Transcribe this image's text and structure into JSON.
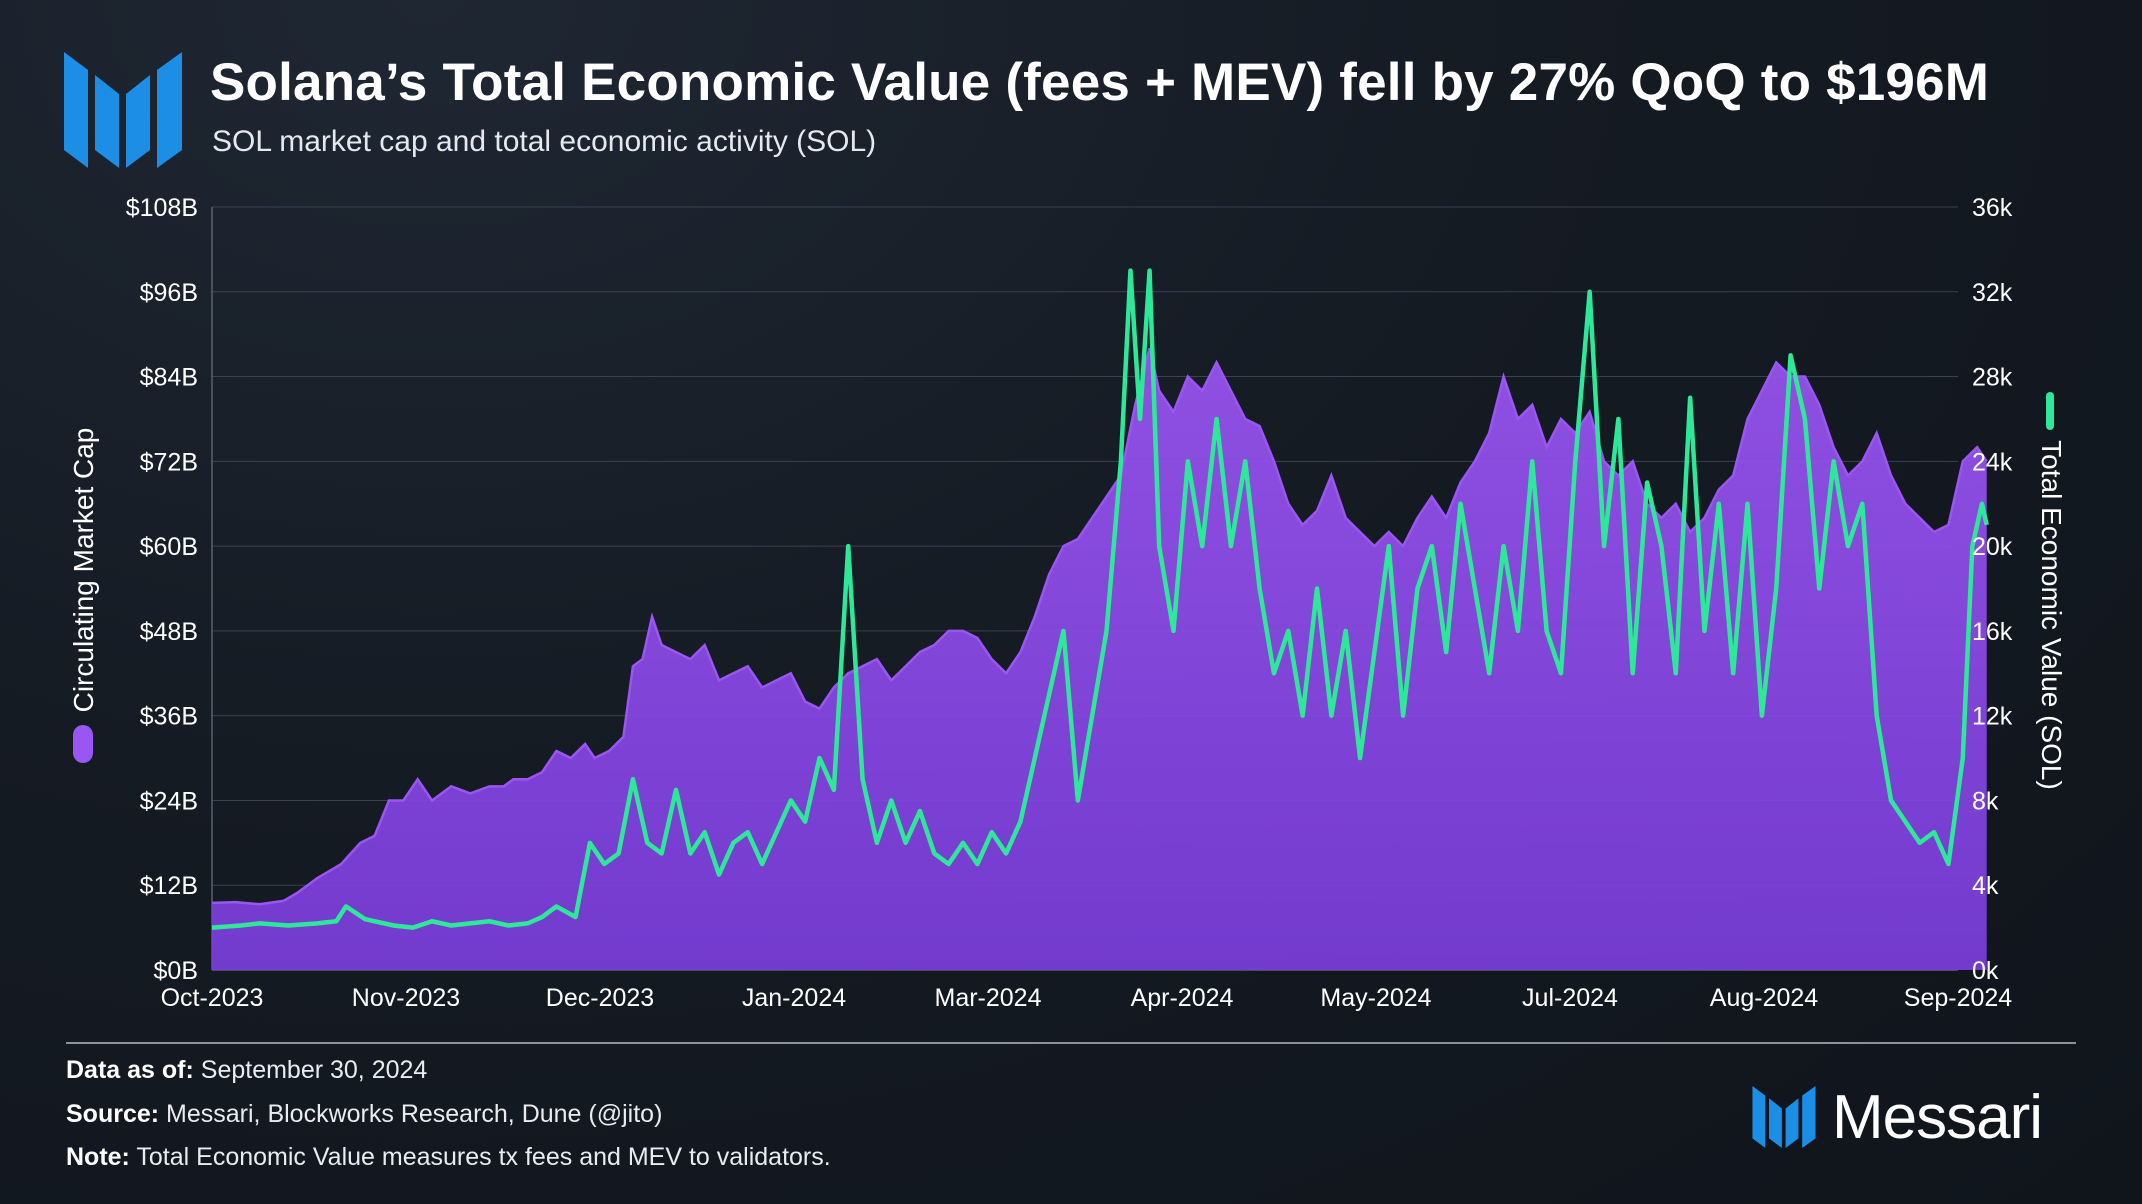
{
  "header": {
    "title": "Solana’s Total Economic Value (fees + MEV) fell by 27% QoQ to $196M",
    "subtitle": "SOL market cap and total economic activity (SOL)"
  },
  "footer": {
    "data_as_of_label": "Data as of:",
    "data_as_of_value": "September 30, 2024",
    "source_label": "Source:",
    "source_value": "Messari, Blockworks Research, Dune (@jito)",
    "note_label": "Note:",
    "note_value": "Total Economic Value measures tx fees and MEV to validators.",
    "brand_name": "Messari"
  },
  "colors": {
    "market_cap_fill": "#7b3ddd",
    "market_cap_line": "#9a55f2",
    "economic_value_line": "#2ee89a",
    "brand_blue": "#1d8ee6",
    "grid": "#3a4150"
  },
  "chart_data": {
    "type": "area+line",
    "title": "Solana’s Total Economic Value (fees + MEV) fell by 27% QoQ to $196M",
    "subtitle": "SOL market cap and total economic activity (SOL)",
    "x_tick_labels": [
      "Oct-2023",
      "Nov-2023",
      "Dec-2023",
      "Jan-2024",
      "Mar-2024",
      "Apr-2024",
      "May-2024",
      "Jul-2024",
      "Aug-2024",
      "Sep-2024"
    ],
    "x_range_days": [
      0,
      365
    ],
    "left_axis": {
      "label": "Circulating Market Cap",
      "range": [
        0,
        108
      ],
      "ticks": [
        0,
        12,
        24,
        36,
        48,
        60,
        72,
        84,
        96,
        108
      ],
      "tick_labels": [
        "$0B",
        "$12B",
        "$24B",
        "$36B",
        "$48B",
        "$60B",
        "$72B",
        "$84B",
        "$96B",
        "$108B"
      ]
    },
    "right_axis": {
      "label": "Total Economic Value (SOL)",
      "range": [
        0,
        36000
      ],
      "ticks": [
        0,
        4000,
        8000,
        12000,
        16000,
        20000,
        24000,
        28000,
        32000,
        36000
      ],
      "tick_labels": [
        "0k",
        "4k",
        "8k",
        "12k",
        "16k",
        "20k",
        "24k",
        "28k",
        "32k",
        "36k"
      ]
    },
    "series": [
      {
        "name": "Circulating Market Cap",
        "axis": "left",
        "style": "area",
        "unit": "USD billions",
        "points": [
          [
            0,
            9.5
          ],
          [
            5,
            9.6
          ],
          [
            10,
            9.3
          ],
          [
            15,
            9.8
          ],
          [
            18,
            11
          ],
          [
            22,
            13
          ],
          [
            27,
            15
          ],
          [
            31,
            18
          ],
          [
            34,
            19
          ],
          [
            37,
            24
          ],
          [
            40,
            24
          ],
          [
            43,
            27
          ],
          [
            46,
            24
          ],
          [
            50,
            26
          ],
          [
            54,
            25
          ],
          [
            58,
            26
          ],
          [
            61,
            26
          ],
          [
            63,
            27
          ],
          [
            66,
            27
          ],
          [
            69,
            28
          ],
          [
            72,
            31
          ],
          [
            75,
            30
          ],
          [
            78,
            32
          ],
          [
            80,
            30
          ],
          [
            83,
            31
          ],
          [
            86,
            33
          ],
          [
            88,
            43
          ],
          [
            90,
            44
          ],
          [
            92,
            50
          ],
          [
            94,
            46
          ],
          [
            97,
            45
          ],
          [
            100,
            44
          ],
          [
            103,
            46
          ],
          [
            106,
            41
          ],
          [
            109,
            42
          ],
          [
            112,
            43
          ],
          [
            115,
            40
          ],
          [
            118,
            41
          ],
          [
            121,
            42
          ],
          [
            124,
            38
          ],
          [
            127,
            37
          ],
          [
            130,
            40
          ],
          [
            133,
            42
          ],
          [
            136,
            43
          ],
          [
            139,
            44
          ],
          [
            142,
            41
          ],
          [
            145,
            43
          ],
          [
            148,
            45
          ],
          [
            151,
            46
          ],
          [
            154,
            48
          ],
          [
            157,
            48
          ],
          [
            160,
            47
          ],
          [
            163,
            44
          ],
          [
            166,
            42
          ],
          [
            169,
            45
          ],
          [
            172,
            50
          ],
          [
            175,
            56
          ],
          [
            178,
            60
          ],
          [
            181,
            61
          ],
          [
            184,
            64
          ],
          [
            187,
            67
          ],
          [
            190,
            70
          ],
          [
            193,
            80
          ],
          [
            196,
            88
          ],
          [
            198,
            82
          ],
          [
            201,
            79
          ],
          [
            204,
            84
          ],
          [
            207,
            82
          ],
          [
            210,
            86
          ],
          [
            213,
            82
          ],
          [
            216,
            78
          ],
          [
            219,
            77
          ],
          [
            222,
            72
          ],
          [
            225,
            66
          ],
          [
            228,
            63
          ],
          [
            231,
            65
          ],
          [
            234,
            70
          ],
          [
            237,
            64
          ],
          [
            240,
            62
          ],
          [
            243,
            60
          ],
          [
            246,
            62
          ],
          [
            249,
            60
          ],
          [
            252,
            64
          ],
          [
            255,
            67
          ],
          [
            258,
            64
          ],
          [
            261,
            69
          ],
          [
            264,
            72
          ],
          [
            267,
            76
          ],
          [
            270,
            84
          ],
          [
            273,
            78
          ],
          [
            276,
            80
          ],
          [
            279,
            74
          ],
          [
            282,
            78
          ],
          [
            285,
            76
          ],
          [
            288,
            79
          ],
          [
            291,
            72
          ],
          [
            294,
            70
          ],
          [
            297,
            72
          ],
          [
            300,
            66
          ],
          [
            303,
            64
          ],
          [
            306,
            66
          ],
          [
            309,
            62
          ],
          [
            312,
            64
          ],
          [
            315,
            68
          ],
          [
            318,
            70
          ],
          [
            321,
            78
          ],
          [
            324,
            82
          ],
          [
            327,
            86
          ],
          [
            330,
            84
          ],
          [
            333,
            84
          ],
          [
            336,
            80
          ],
          [
            339,
            74
          ],
          [
            342,
            70
          ],
          [
            345,
            72
          ],
          [
            348,
            76
          ],
          [
            351,
            70
          ],
          [
            354,
            66
          ],
          [
            357,
            64
          ],
          [
            360,
            62
          ],
          [
            363,
            63
          ],
          [
            366,
            72
          ],
          [
            369,
            74
          ],
          [
            371,
            72
          ]
        ]
      },
      {
        "name": "Total Economic Value (SOL)",
        "axis": "right",
        "style": "line",
        "unit": "SOL",
        "points": [
          [
            0,
            2000
          ],
          [
            6,
            2100
          ],
          [
            10,
            2200
          ],
          [
            16,
            2100
          ],
          [
            22,
            2200
          ],
          [
            26,
            2300
          ],
          [
            28,
            3000
          ],
          [
            32,
            2400
          ],
          [
            38,
            2100
          ],
          [
            42,
            2000
          ],
          [
            46,
            2300
          ],
          [
            50,
            2100
          ],
          [
            54,
            2200
          ],
          [
            58,
            2300
          ],
          [
            62,
            2100
          ],
          [
            66,
            2200
          ],
          [
            69,
            2500
          ],
          [
            72,
            3000
          ],
          [
            76,
            2500
          ],
          [
            79,
            6000
          ],
          [
            82,
            5000
          ],
          [
            85,
            5500
          ],
          [
            88,
            9000
          ],
          [
            91,
            6000
          ],
          [
            94,
            5500
          ],
          [
            97,
            8500
          ],
          [
            100,
            5500
          ],
          [
            103,
            6500
          ],
          [
            106,
            4500
          ],
          [
            109,
            6000
          ],
          [
            112,
            6500
          ],
          [
            115,
            5000
          ],
          [
            118,
            6500
          ],
          [
            121,
            8000
          ],
          [
            124,
            7000
          ],
          [
            127,
            10000
          ],
          [
            130,
            8500
          ],
          [
            133,
            20000
          ],
          [
            136,
            9000
          ],
          [
            139,
            6000
          ],
          [
            142,
            8000
          ],
          [
            145,
            6000
          ],
          [
            148,
            7500
          ],
          [
            151,
            5500
          ],
          [
            154,
            5000
          ],
          [
            157,
            6000
          ],
          [
            160,
            5000
          ],
          [
            163,
            6500
          ],
          [
            166,
            5500
          ],
          [
            169,
            7000
          ],
          [
            172,
            10000
          ],
          [
            175,
            13000
          ],
          [
            178,
            16000
          ],
          [
            181,
            8000
          ],
          [
            184,
            12000
          ],
          [
            187,
            16000
          ],
          [
            190,
            24000
          ],
          [
            192,
            33000
          ],
          [
            194,
            26000
          ],
          [
            196,
            33000
          ],
          [
            198,
            20000
          ],
          [
            201,
            16000
          ],
          [
            204,
            24000
          ],
          [
            207,
            20000
          ],
          [
            210,
            26000
          ],
          [
            213,
            20000
          ],
          [
            216,
            24000
          ],
          [
            219,
            18000
          ],
          [
            222,
            14000
          ],
          [
            225,
            16000
          ],
          [
            228,
            12000
          ],
          [
            231,
            18000
          ],
          [
            234,
            12000
          ],
          [
            237,
            16000
          ],
          [
            240,
            10000
          ],
          [
            243,
            15000
          ],
          [
            246,
            20000
          ],
          [
            249,
            12000
          ],
          [
            252,
            18000
          ],
          [
            255,
            20000
          ],
          [
            258,
            15000
          ],
          [
            261,
            22000
          ],
          [
            264,
            18000
          ],
          [
            267,
            14000
          ],
          [
            270,
            20000
          ],
          [
            273,
            16000
          ],
          [
            276,
            24000
          ],
          [
            279,
            16000
          ],
          [
            282,
            14000
          ],
          [
            285,
            24000
          ],
          [
            288,
            32000
          ],
          [
            291,
            20000
          ],
          [
            294,
            26000
          ],
          [
            297,
            14000
          ],
          [
            300,
            23000
          ],
          [
            303,
            20000
          ],
          [
            306,
            14000
          ],
          [
            309,
            27000
          ],
          [
            312,
            16000
          ],
          [
            315,
            22000
          ],
          [
            318,
            14000
          ],
          [
            321,
            22000
          ],
          [
            324,
            12000
          ],
          [
            327,
            18000
          ],
          [
            330,
            29000
          ],
          [
            333,
            26000
          ],
          [
            336,
            18000
          ],
          [
            339,
            24000
          ],
          [
            342,
            20000
          ],
          [
            345,
            22000
          ],
          [
            348,
            12000
          ],
          [
            351,
            8000
          ],
          [
            354,
            7000
          ],
          [
            357,
            6000
          ],
          [
            360,
            6500
          ],
          [
            363,
            5000
          ],
          [
            366,
            10000
          ],
          [
            368,
            20000
          ],
          [
            370,
            22000
          ],
          [
            371,
            21000
          ]
        ]
      }
    ],
    "legend": [
      {
        "name": "Circulating Market Cap",
        "position": "left-vertical",
        "marker": "purple-pill"
      },
      {
        "name": "Total Economic Value (SOL)",
        "position": "right-vertical",
        "marker": "green-line"
      }
    ]
  }
}
